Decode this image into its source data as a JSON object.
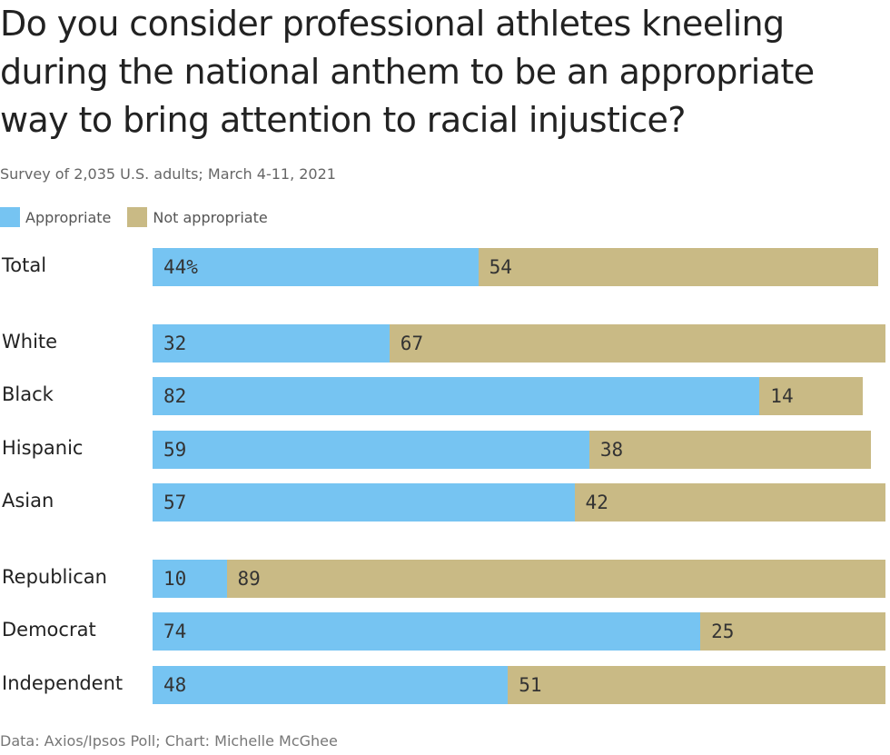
{
  "chart_data": {
    "type": "bar",
    "orientation": "horizontal-stacked",
    "title": "Do you consider professional athletes kneeling during the national anthem to be an appropriate way to bring attention to racial injustice?",
    "subtitle": "Survey of 2,035 U.S. adults; March 4-11, 2021",
    "footer": "Data: Axios/Ipsos Poll; Chart: Michelle McGhee",
    "unit": "%",
    "xlim": [
      0,
      100
    ],
    "legend_position": "top-left",
    "colors": {
      "Appropriate": "#76c4f2",
      "Not appropriate": "#c9ba85"
    },
    "groups": [
      [
        "Total"
      ],
      [
        "White",
        "Black",
        "Hispanic",
        "Asian"
      ],
      [
        "Republican",
        "Democrat",
        "Independent"
      ]
    ],
    "categories": [
      "Total",
      "White",
      "Black",
      "Hispanic",
      "Asian",
      "Republican",
      "Democrat",
      "Independent"
    ],
    "series": [
      {
        "name": "Appropriate",
        "values": [
          44,
          32,
          82,
          59,
          57,
          10,
          74,
          48
        ],
        "labels": [
          "44%",
          "32",
          "82",
          "59",
          "57",
          "10",
          "74",
          "48"
        ]
      },
      {
        "name": "Not appropriate",
        "values": [
          54,
          67,
          14,
          38,
          42,
          89,
          25,
          51
        ],
        "labels": [
          "54",
          "67",
          "14",
          "38",
          "42",
          "89",
          "25",
          "51"
        ]
      }
    ]
  }
}
